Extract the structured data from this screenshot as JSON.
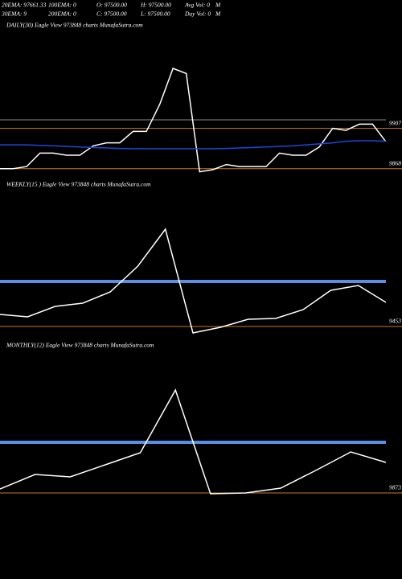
{
  "header": {
    "line1": [
      "20EMA: 97661.33",
      "100EMA: 0",
      "O: 97500.00",
      "H: 97500.00",
      "Avg Vol: 0",
      "M"
    ],
    "line2": [
      "30EMA: 9",
      "200EMA: 0",
      "C: 97500.00",
      "L: 97500.00",
      "Day Vol: 0",
      "M"
    ]
  },
  "chart_data": [
    {
      "type": "line",
      "title": "DAILY(30) Eagle  View  973848  charts MunafaSutra.com",
      "ylim": [
        98600,
        100000
      ],
      "yticks": [
        {
          "value": 99070,
          "label": "9907"
        },
        {
          "value": 98680,
          "label": "9868"
        }
      ],
      "grid_color": "#c8782c",
      "hlines": [
        {
          "value": 99152,
          "color": "#8c8c8c",
          "width": 1
        }
      ],
      "series": [
        {
          "color": "#ffffff",
          "width": 1.5,
          "values": [
            98680,
            98680,
            98700,
            98830,
            98830,
            98810,
            98810,
            98900,
            98930,
            98930,
            99040,
            99040,
            99300,
            99650,
            99600,
            98650,
            98670,
            98720,
            98700,
            98700,
            98700,
            98830,
            98810,
            98810,
            98890,
            99070,
            99050,
            99110,
            99110,
            98940
          ]
        },
        {
          "color": "#1e46dc",
          "width": 1.5,
          "values": [
            98910,
            98910,
            98910,
            98905,
            98900,
            98895,
            98890,
            98885,
            98880,
            98875,
            98873,
            98872,
            98872,
            98872,
            98872,
            98872,
            98872,
            98875,
            98880,
            98885,
            98890,
            98895,
            98900,
            98910,
            98920,
            98930,
            98945,
            98950,
            98950,
            98945
          ]
        }
      ]
    },
    {
      "type": "line",
      "title": "WEEKLY(15      ) Eagle  View  973848  charts MunafaSutra.com",
      "ylim": [
        94390,
        96290
      ],
      "yticks": [
        {
          "value": 94530,
          "label": "9453"
        }
      ],
      "grid_color": "#c8782c",
      "hlines": [
        {
          "value": 95090,
          "color": "#5a8ee6",
          "width": 4
        }
      ],
      "series": [
        {
          "color": "#ffffff",
          "width": 1.5,
          "values": [
            94680,
            94650,
            94780,
            94820,
            94960,
            95280,
            95740,
            94450,
            94520,
            94620,
            94630,
            94740,
            94980,
            95040,
            94830
          ]
        }
      ]
    },
    {
      "type": "line",
      "title": "MONTHLY(12) Eagle  View  973848  charts MunafaSutra.com",
      "ylim": [
        98560,
        100560
      ],
      "yticks": [
        {
          "value": 98730,
          "label": "9873"
        }
      ],
      "grid_color": "#c8782c",
      "hlines": [
        {
          "value": 99360,
          "color": "#5a8ee6",
          "width": 4
        }
      ],
      "series": [
        {
          "color": "#ffffff",
          "width": 1.5,
          "values": [
            98780,
            98960,
            98930,
            99080,
            99230,
            100010,
            98720,
            98730,
            98790,
            99010,
            99240,
            99110
          ]
        }
      ]
    }
  ]
}
